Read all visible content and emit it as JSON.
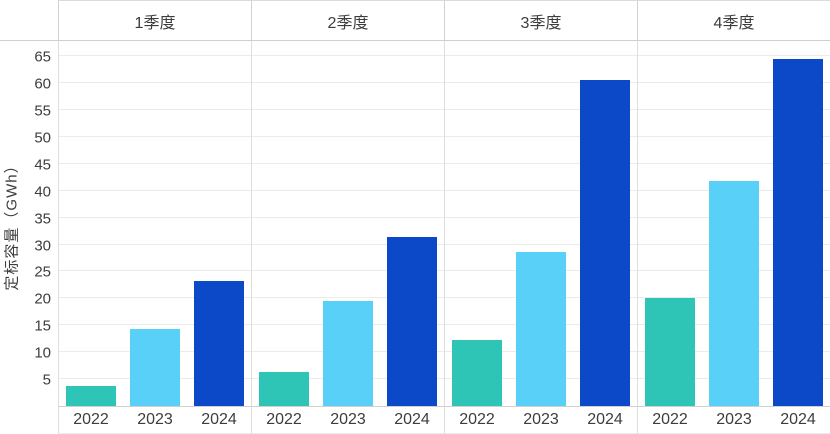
{
  "chart_data": {
    "type": "bar",
    "facets": [
      {
        "label": "1季度",
        "values": [
          3.8,
          14.4,
          23.2
        ]
      },
      {
        "label": "2季度",
        "values": [
          6.3,
          19.6,
          31.4
        ]
      },
      {
        "label": "3季度",
        "values": [
          12.3,
          28.7,
          60.5
        ]
      },
      {
        "label": "4季度",
        "values": [
          20.0,
          41.8,
          64.5
        ]
      }
    ],
    "categories": [
      "2022",
      "2023",
      "2024"
    ],
    "ylabel": "定标容量（GWh）",
    "yticks": [
      5,
      10,
      15,
      20,
      25,
      30,
      35,
      40,
      45,
      50,
      55,
      60,
      65
    ],
    "ylim": [
      0,
      68
    ],
    "grid": true,
    "legend": "none",
    "colors": {
      "2022": "#2ec4b6",
      "2023": "#58d0f7",
      "2024": "#0b49c8"
    }
  }
}
